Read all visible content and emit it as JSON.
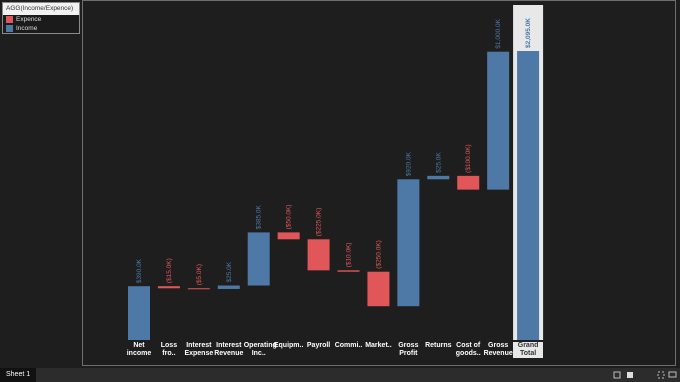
{
  "chart_data": {
    "type": "waterfall",
    "legend_title": "AGG(Income/Expence)",
    "legend": [
      {
        "name": "Expence",
        "color": "#e15759"
      },
      {
        "name": "Income",
        "color": "#4e79a7"
      }
    ],
    "categories": [
      "Net income",
      "Loss fro..",
      "Interest Expense",
      "Interest Revenue",
      "Operating Inc..",
      "Equipm..",
      "Payroll",
      "Commi..",
      "Market..",
      "Gross Profit",
      "Returns",
      "Cost of goods..",
      "Gross Revenue"
    ],
    "values": [
      390,
      -15,
      -5,
      25,
      385,
      -50,
      -225,
      -10,
      -250,
      920,
      25,
      -100,
      1000
    ],
    "value_labels": [
      "$390.0K",
      "($15.0K)",
      "($5.0K)",
      "$25.0K",
      "$385.0K",
      "($50.0K)",
      "($225.0K)",
      "($10.0K)",
      "($250.0K)",
      "$920.0K",
      "$25.0K",
      "($100.0K)",
      "$1,000.0K"
    ],
    "total": {
      "category": "Grand Total",
      "value": 2095,
      "value_label": "$2,095.0K",
      "highlight": "#e8e8e8"
    }
  },
  "sheet_tab": "Sheet 1"
}
